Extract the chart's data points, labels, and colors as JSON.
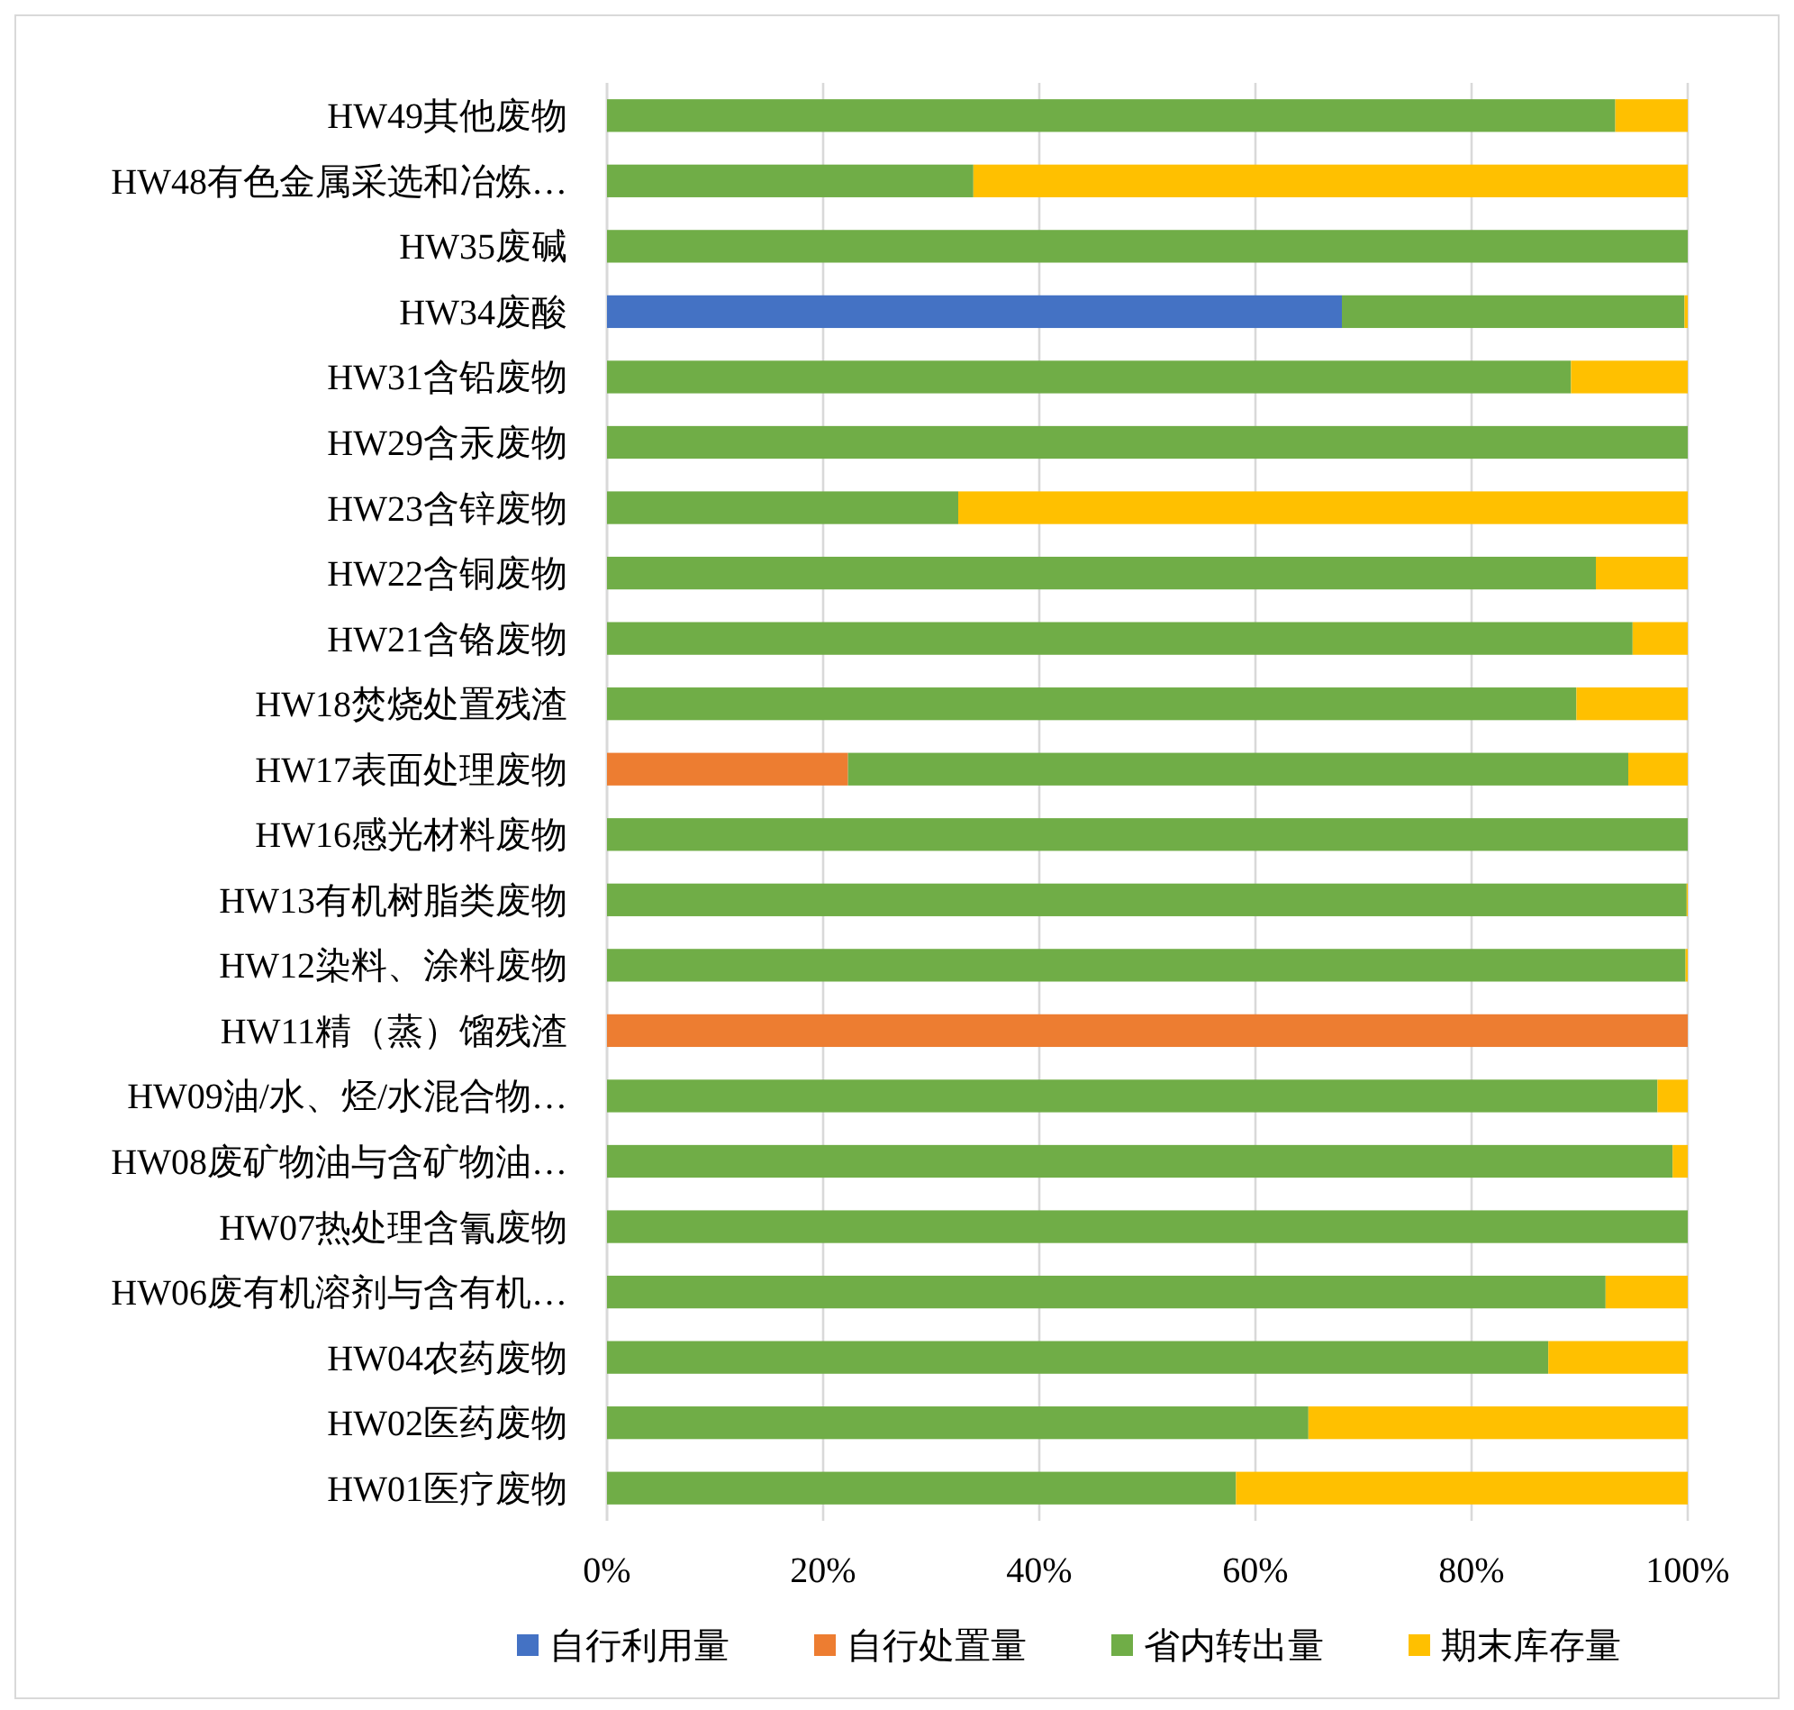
{
  "chart_data": {
    "type": "bar",
    "orientation": "horizontal",
    "stacked": true,
    "categories": [
      "HW49其他废物",
      "HW48有色金属采选和冶炼…",
      "HW35废碱",
      "HW34废酸",
      "HW31含铅废物",
      "HW29含汞废物",
      "HW23含锌废物",
      "HW22含铜废物",
      "HW21含铬废物",
      "HW18焚烧处置残渣",
      "HW17表面处理废物",
      "HW16感光材料废物",
      "HW13有机树脂类废物",
      "HW12染料、涂料废物",
      "HW11精（蒸）馏残渣",
      "HW09油/水、烃/水混合物…",
      "HW08废矿物油与含矿物油…",
      "HW07热处理含氰废物",
      "HW06废有机溶剂与含有机…",
      "HW04农药废物",
      "HW02医药废物",
      "HW01医疗废物"
    ],
    "series": [
      {
        "name": "自行利用量",
        "color": "#4472c4",
        "values": [
          0,
          0,
          0,
          68.0,
          0,
          0,
          0,
          0,
          0,
          0,
          0,
          0,
          0,
          0,
          0,
          0,
          0,
          0,
          0,
          0,
          0,
          0
        ]
      },
      {
        "name": "自行处置量",
        "color": "#ed7d31",
        "values": [
          0,
          0,
          0,
          0,
          0,
          0,
          0,
          0,
          0,
          0,
          22.3,
          0,
          0,
          0,
          100,
          0,
          0,
          0,
          0,
          0,
          0,
          0
        ]
      },
      {
        "name": "省内转出量",
        "color": "#70ad47",
        "values": [
          93.3,
          33.9,
          100,
          31.7,
          89.2,
          100,
          32.5,
          91.5,
          94.9,
          89.7,
          72.2,
          100,
          99.9,
          99.8,
          0,
          97.2,
          98.6,
          100,
          92.4,
          87.1,
          64.9,
          58.2
        ]
      },
      {
        "name": "期末库存量",
        "color": "#ffc000",
        "values": [
          6.7,
          66.1,
          0,
          0.3,
          10.8,
          0,
          67.5,
          8.5,
          5.1,
          10.3,
          5.5,
          0,
          0.1,
          0.2,
          0,
          2.8,
          1.4,
          0,
          7.6,
          12.9,
          35.1,
          41.8
        ]
      }
    ],
    "xlim": [
      0,
      100
    ],
    "xticks": [
      {
        "value": 0,
        "label": "0%"
      },
      {
        "value": 20,
        "label": "20%"
      },
      {
        "value": 40,
        "label": "40%"
      },
      {
        "value": 60,
        "label": "60%"
      },
      {
        "value": 80,
        "label": "80%"
      },
      {
        "value": 100,
        "label": "100%"
      }
    ],
    "grid": "x",
    "legend": "bottom"
  }
}
